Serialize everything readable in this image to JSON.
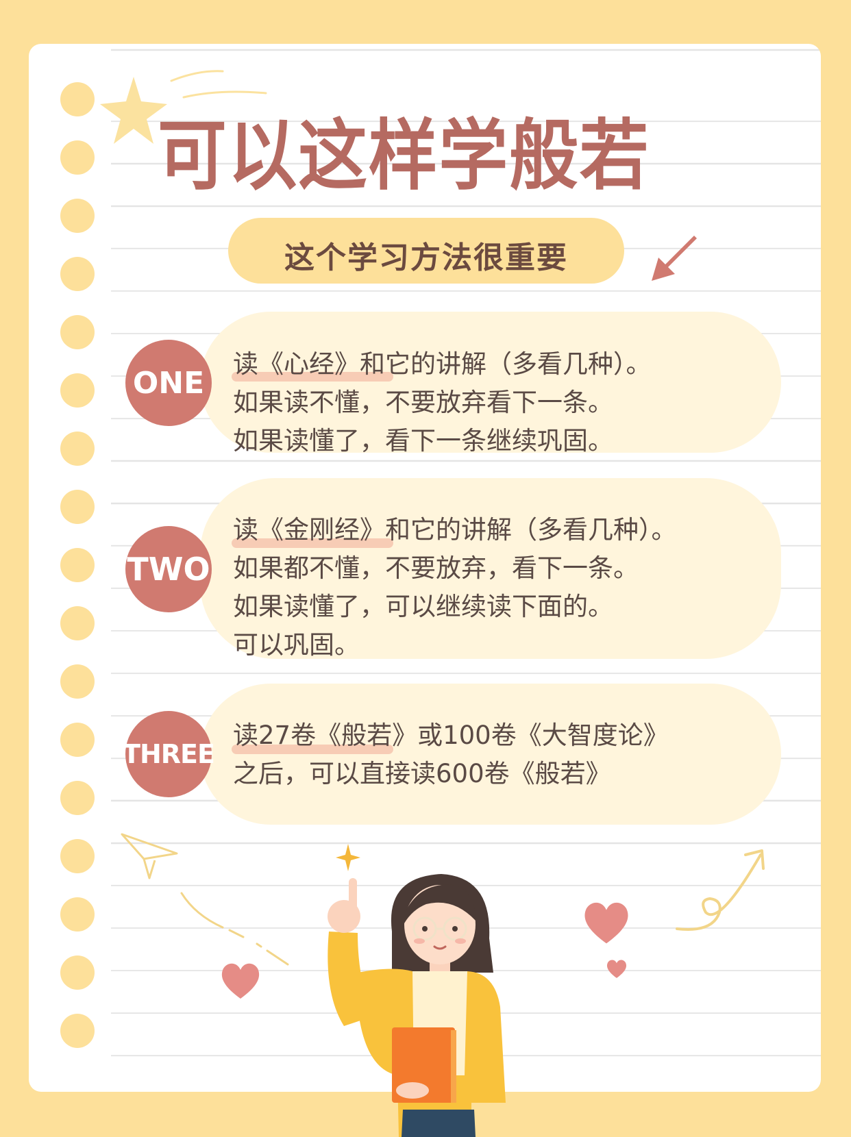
{
  "title": "可以这样学般若",
  "subtitle": "这个学习方法很重要",
  "steps": [
    {
      "badge": "ONE",
      "lines": [
        "读《心经》和它的讲解（多看几种）。",
        "如果读不懂，不要放弃看下一条。",
        "如果读懂了，看下一条继续巩固。"
      ]
    },
    {
      "badge": "TWO",
      "lines": [
        "读《金刚经》和它的讲解（多看几种）。",
        "如果都不懂，不要放弃，看下一条。",
        "如果读懂了，可以继续读下面的。",
        "可以巩固。"
      ]
    },
    {
      "badge": "THREE",
      "lines": [
        "读27卷《般若》或100卷《大智度论》",
        "之后，可以直接读600卷《般若》"
      ]
    }
  ],
  "colors": {
    "background": "#fde09a",
    "title": "#b56a61",
    "badge": "#d07a70",
    "card": "#fff5dc",
    "text": "#5a4a45"
  },
  "icons": [
    "star-icon",
    "arrow-down-left-icon",
    "paper-plane-icon",
    "heart-icon",
    "sparkle-icon",
    "curly-arrow-icon",
    "girl-illustration"
  ]
}
